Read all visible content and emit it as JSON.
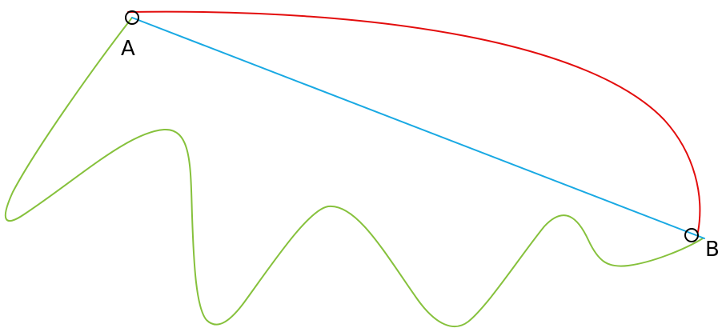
{
  "points": {
    "a": {
      "label": "A"
    },
    "b": {
      "label": "B"
    }
  },
  "colors": {
    "straight_path": "#19a9e3",
    "arc_path": "#e30d0d",
    "wavy_path": "#86c13c",
    "marker": "#000000"
  }
}
